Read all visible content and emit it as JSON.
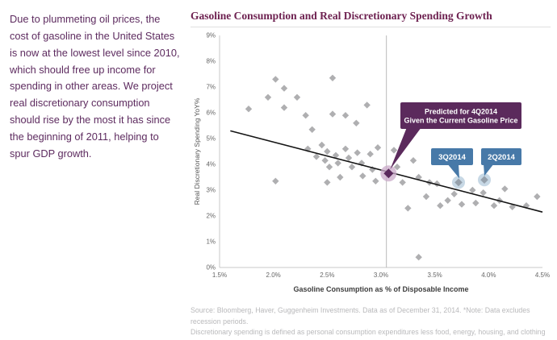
{
  "left_note": "Due to plummeting oil prices, the cost of gasoline in the United States is now at the lowest level since 2010, which should free up income for spending in other areas. We project real discretionary consumption should rise by the most it has since the beginning of 2011, helping to spur GDP growth.",
  "source": {
    "line1": "Source: Bloomberg, Haver, Guggenheim Investments. Data as of December 31, 2014. *Note: Data excludes recession periods.",
    "line2": "Discretionary spending is defined as personal consumption expenditures less food, energy, housing, and clothing expenditures."
  },
  "colors": {
    "point_gray": "#a9a9ab",
    "point_dark": "#95a0ab",
    "accent_purple": "#5b2a5c",
    "purple_halo": "#c9aac8",
    "accent_blue": "#4779a8",
    "blue_halo": "#bdd1e1",
    "trend_line": "#141414",
    "axis_gray": "#c8c8c8",
    "vline_gray": "#bbbbbb",
    "title_plum": "#6e2251"
  },
  "chart_data": {
    "type": "scatter",
    "title": "Gasoline Consumption and Real Discretionary Spending Growth",
    "xlabel": "Gasoline Consumption as % of Disposable Income",
    "ylabel": "Real Discretionary Spending YoY%",
    "xlim": [
      1.5,
      4.5
    ],
    "ylim": [
      0,
      9
    ],
    "x_tick_values": [
      1.5,
      2.0,
      2.5,
      3.0,
      3.5,
      4.0,
      4.5
    ],
    "x_tick_labels": [
      "1.5%",
      "2.0%",
      "2.5%",
      "3.0%",
      "3.5%",
      "4.0%",
      "4.5%"
    ],
    "y_tick_values": [
      0,
      1,
      2,
      3,
      4,
      5,
      6,
      7,
      8,
      9
    ],
    "y_tick_labels": [
      "0%",
      "1%",
      "2%",
      "3%",
      "4%",
      "5%",
      "6%",
      "7%",
      "8%",
      "9%"
    ],
    "grid": false,
    "vline_x": 3.05,
    "trendline": {
      "x1": 1.6,
      "y1": 5.3,
      "x2": 4.5,
      "y2": 2.15
    },
    "points": [
      [
        1.77,
        6.15
      ],
      [
        1.95,
        6.6
      ],
      [
        2.02,
        7.3
      ],
      [
        2.1,
        6.95
      ],
      [
        2.1,
        6.2
      ],
      [
        2.22,
        6.6
      ],
      [
        2.3,
        5.9
      ],
      [
        2.02,
        3.35
      ],
      [
        2.32,
        4.6
      ],
      [
        2.36,
        5.35
      ],
      [
        2.4,
        4.3
      ],
      [
        2.45,
        4.75
      ],
      [
        2.48,
        4.15
      ],
      [
        2.5,
        4.5
      ],
      [
        2.52,
        3.9
      ],
      [
        2.5,
        3.3
      ],
      [
        2.55,
        5.95
      ],
      [
        2.55,
        7.35
      ],
      [
        2.58,
        4.35
      ],
      [
        2.6,
        4.05
      ],
      [
        2.62,
        3.5
      ],
      [
        2.67,
        5.9
      ],
      [
        2.67,
        4.6
      ],
      [
        2.7,
        4.25
      ],
      [
        2.73,
        3.9
      ],
      [
        2.77,
        5.6
      ],
      [
        2.78,
        4.45
      ],
      [
        2.82,
        4.05
      ],
      [
        2.83,
        3.55
      ],
      [
        2.87,
        6.3
      ],
      [
        2.9,
        4.4
      ],
      [
        2.92,
        3.8
      ],
      [
        2.95,
        3.35
      ],
      [
        2.97,
        4.65
      ],
      [
        3.12,
        4.55
      ],
      [
        3.15,
        3.9
      ],
      [
        3.2,
        3.3
      ],
      [
        3.25,
        2.3
      ],
      [
        3.3,
        4.15
      ],
      [
        3.35,
        3.5
      ],
      [
        3.35,
        0.4
      ],
      [
        3.42,
        2.75
      ],
      [
        3.45,
        3.3
      ],
      [
        3.52,
        3.25
      ],
      [
        3.55,
        2.4
      ],
      [
        3.62,
        2.6
      ],
      [
        3.68,
        2.85
      ],
      [
        3.75,
        2.45
      ],
      [
        3.85,
        3.0
      ],
      [
        3.88,
        2.5
      ],
      [
        3.95,
        2.9
      ],
      [
        4.05,
        2.4
      ],
      [
        4.1,
        2.6
      ],
      [
        4.15,
        3.05
      ],
      [
        4.22,
        2.35
      ],
      [
        4.35,
        2.4
      ],
      [
        4.45,
        2.75
      ]
    ],
    "highlights": {
      "predicted": {
        "x": 3.07,
        "y": 3.65,
        "label_lines": [
          "Predicted for 4Q2014",
          "Given the Current Gasoline Price"
        ]
      },
      "q3": {
        "x": 3.72,
        "y": 3.3,
        "label": "3Q2014"
      },
      "q2": {
        "x": 3.96,
        "y": 3.4,
        "label": "2Q2014"
      }
    },
    "legend": "none"
  }
}
